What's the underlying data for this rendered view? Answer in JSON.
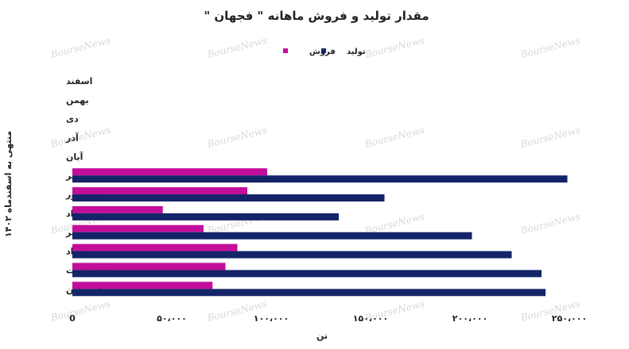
{
  "watermark": "BourseNews",
  "chart_data": {
    "type": "bar",
    "orientation": "horizontal",
    "title": "مقدار تولید و فروش ماهانه \" فجهان \"",
    "xlabel": "تن",
    "ylabel": "منتهی به اسفندماه ۱۴۰۲",
    "xlim": [
      0,
      250000
    ],
    "xticks": [
      0,
      50000,
      100000,
      150000,
      200000,
      250000
    ],
    "xtick_labels": [
      "0",
      "۵۰،۰۰۰",
      "۱۰۰،۰۰۰",
      "۱۵۰،۰۰۰",
      "۲۰۰،۰۰۰",
      "۲۵۰،۰۰۰"
    ],
    "grid": false,
    "legend_position": "top",
    "categories": [
      "فروردین",
      "اردیبهشت",
      "خرداد",
      "تیر",
      "مرداد",
      "شهریور",
      "مهر",
      "آبان",
      "آذر",
      "دی",
      "بهمن",
      "اسفند"
    ],
    "series": [
      {
        "name": "فروش",
        "color": "#c20e9a",
        "values": [
          70500,
          77000,
          83000,
          66000,
          45500,
          88000,
          98000,
          null,
          null,
          null,
          null,
          null
        ]
      },
      {
        "name": "تولید",
        "color": "#142468",
        "values": [
          238000,
          236000,
          221000,
          201000,
          134000,
          157000,
          249000,
          null,
          null,
          null,
          null,
          null
        ]
      }
    ]
  }
}
